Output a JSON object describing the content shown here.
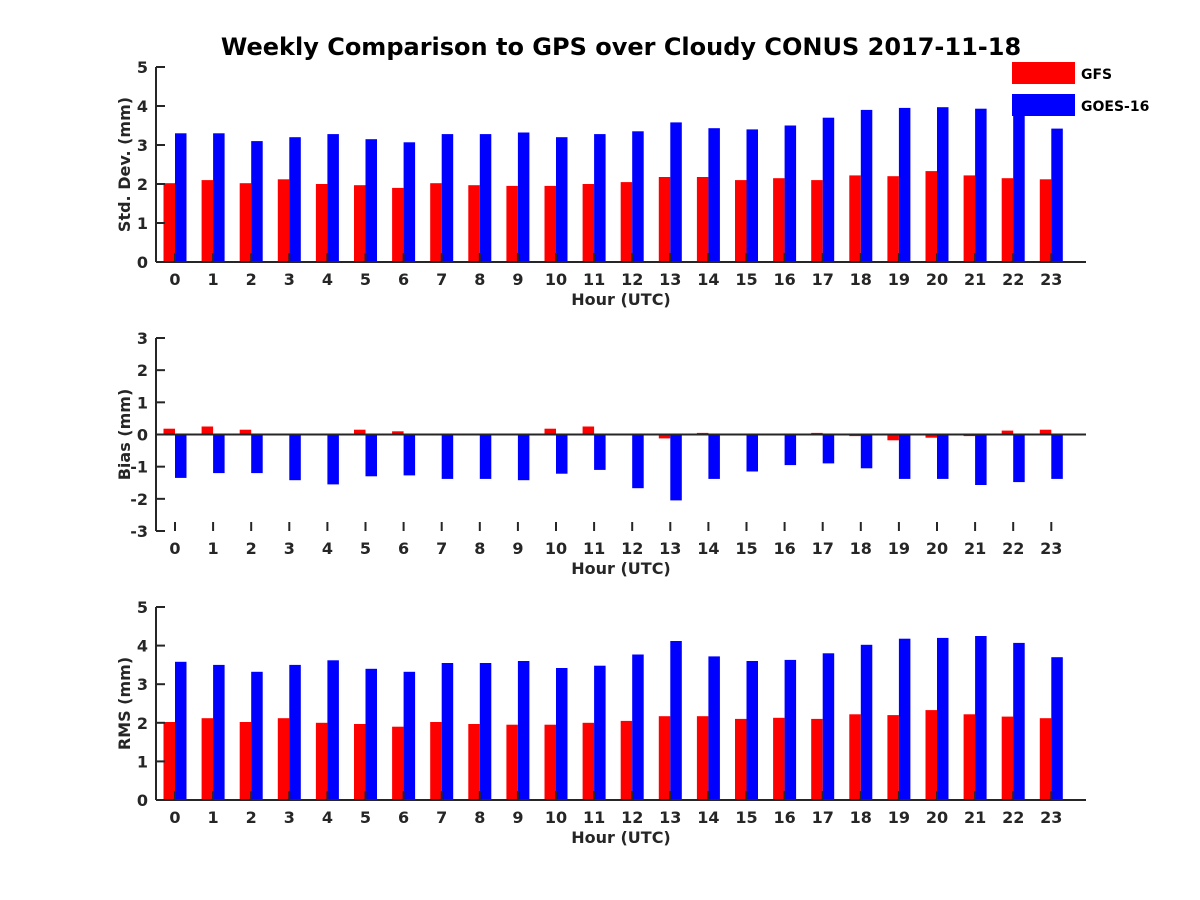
{
  "chart_data": {
    "type": "bar",
    "title": "Weekly Comparison to GPS over Cloudy CONUS 2017-11-18",
    "categories": [
      "0",
      "1",
      "2",
      "3",
      "4",
      "5",
      "6",
      "7",
      "8",
      "9",
      "10",
      "11",
      "12",
      "13",
      "14",
      "15",
      "16",
      "17",
      "18",
      "19",
      "20",
      "21",
      "22",
      "23"
    ],
    "legend": {
      "placement": "top-right",
      "entries": [
        {
          "name": "GFS",
          "color": "#ff0000"
        },
        {
          "name": "GOES-16",
          "color": "#0000ff"
        }
      ]
    },
    "panels": [
      {
        "xlabel": "Hour (UTC)",
        "ylabel": "Std. Dev. (mm)",
        "ylim": [
          0,
          5
        ],
        "yticks": [
          0,
          1,
          2,
          3,
          4,
          5
        ],
        "series": [
          {
            "name": "GFS",
            "color": "#ff0000",
            "values": [
              2.02,
              2.1,
              2.02,
              2.12,
              2.0,
              1.97,
              1.9,
              2.02,
              1.97,
              1.95,
              1.95,
              2.0,
              2.05,
              2.18,
              2.18,
              2.1,
              2.15,
              2.1,
              2.22,
              2.2,
              2.33,
              2.22,
              2.15,
              2.12
            ]
          },
          {
            "name": "GOES-16",
            "color": "#0000ff",
            "values": [
              3.3,
              3.3,
              3.1,
              3.2,
              3.28,
              3.15,
              3.07,
              3.28,
              3.28,
              3.32,
              3.2,
              3.28,
              3.35,
              3.58,
              3.43,
              3.4,
              3.5,
              3.7,
              3.9,
              3.95,
              3.97,
              3.93,
              3.77,
              3.42
            ]
          }
        ]
      },
      {
        "xlabel": "Hour (UTC)",
        "ylabel": "Bias (mm)",
        "ylim": [
          -3,
          3
        ],
        "yticks": [
          -3,
          -2,
          -1,
          0,
          1,
          2,
          3
        ],
        "series": [
          {
            "name": "GFS",
            "color": "#ff0000",
            "values": [
              0.18,
              0.25,
              0.15,
              0.03,
              -0.02,
              0.15,
              0.1,
              -0.02,
              -0.03,
              0.03,
              0.18,
              0.25,
              0.03,
              -0.12,
              0.05,
              0.03,
              -0.03,
              0.05,
              -0.05,
              -0.18,
              -0.1,
              -0.05,
              0.12,
              0.15
            ]
          },
          {
            "name": "GOES-16",
            "color": "#0000ff",
            "values": [
              -1.35,
              -1.2,
              -1.2,
              -1.42,
              -1.55,
              -1.3,
              -1.27,
              -1.38,
              -1.38,
              -1.42,
              -1.22,
              -1.1,
              -1.67,
              -2.05,
              -1.38,
              -1.15,
              -0.95,
              -0.9,
              -1.05,
              -1.38,
              -1.38,
              -1.57,
              -1.48,
              -1.38
            ]
          }
        ]
      },
      {
        "xlabel": "Hour (UTC)",
        "ylabel": "RMS (mm)",
        "ylim": [
          0,
          5
        ],
        "yticks": [
          0,
          1,
          2,
          3,
          4,
          5
        ],
        "series": [
          {
            "name": "GFS",
            "color": "#ff0000",
            "values": [
              2.02,
              2.12,
              2.02,
              2.12,
              2.0,
              1.97,
              1.9,
              2.02,
              1.97,
              1.95,
              1.95,
              2.0,
              2.05,
              2.17,
              2.17,
              2.1,
              2.13,
              2.1,
              2.22,
              2.2,
              2.33,
              2.22,
              2.16,
              2.12
            ]
          },
          {
            "name": "GOES-16",
            "color": "#0000ff",
            "values": [
              3.58,
              3.5,
              3.32,
              3.5,
              3.62,
              3.4,
              3.32,
              3.55,
              3.55,
              3.6,
              3.42,
              3.48,
              3.77,
              4.12,
              3.72,
              3.6,
              3.63,
              3.8,
              4.02,
              4.18,
              4.2,
              4.25,
              4.07,
              3.7
            ]
          }
        ]
      }
    ]
  }
}
